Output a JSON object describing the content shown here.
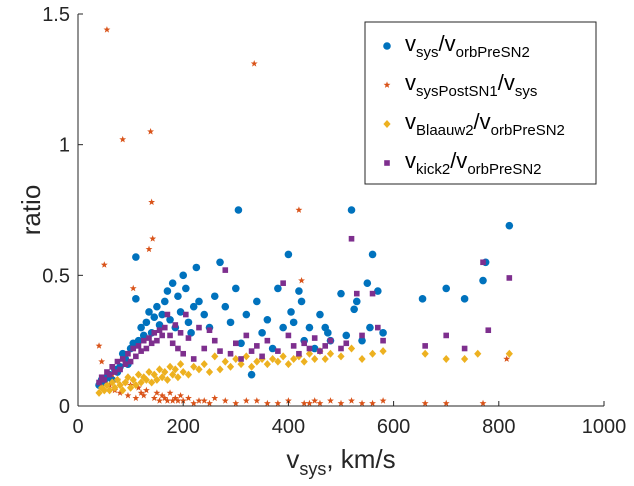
{
  "chart_data": {
    "type": "scatter",
    "xlabel_main": "v",
    "xlabel_sub": "sys",
    "xlabel_rest": ", km/s",
    "ylabel": "ratio",
    "xlim": [
      0,
      1000
    ],
    "ylim": [
      0,
      1.5
    ],
    "x_ticks": [
      0,
      200,
      400,
      600,
      800,
      1000
    ],
    "y_ticks": [
      0,
      0.5,
      1,
      1.5
    ],
    "x_tick_labels": [
      "0",
      "200",
      "400",
      "600",
      "800",
      "1000"
    ],
    "y_tick_labels": [
      "0",
      "0.5",
      "1",
      "1.5"
    ],
    "legend_position": "top-right",
    "grid": false,
    "series": [
      {
        "name": "vsys/vorbPreSN2",
        "legend_parts": [
          [
            "v",
            ""
          ],
          [
            "sys",
            "sub"
          ],
          [
            "/v",
            ""
          ],
          [
            "orbPreSN2",
            "sub"
          ]
        ],
        "marker": "circle",
        "color": "#0072BD",
        "points": [
          [
            40,
            0.08
          ],
          [
            45,
            0.1
          ],
          [
            50,
            0.09
          ],
          [
            55,
            0.11
          ],
          [
            60,
            0.12
          ],
          [
            65,
            0.1
          ],
          [
            70,
            0.14
          ],
          [
            75,
            0.13
          ],
          [
            80,
            0.15
          ],
          [
            85,
            0.2
          ],
          [
            90,
            0.18
          ],
          [
            95,
            0.16
          ],
          [
            100,
            0.22
          ],
          [
            105,
            0.24
          ],
          [
            110,
            0.41
          ],
          [
            110,
            0.57
          ],
          [
            115,
            0.25
          ],
          [
            120,
            0.3
          ],
          [
            125,
            0.27
          ],
          [
            130,
            0.32
          ],
          [
            135,
            0.36
          ],
          [
            140,
            0.28
          ],
          [
            145,
            0.34
          ],
          [
            150,
            0.38
          ],
          [
            155,
            0.31
          ],
          [
            160,
            0.35
          ],
          [
            165,
            0.4
          ],
          [
            170,
            0.44
          ],
          [
            175,
            0.33
          ],
          [
            180,
            0.47
          ],
          [
            185,
            0.3
          ],
          [
            190,
            0.42
          ],
          [
            195,
            0.36
          ],
          [
            200,
            0.5
          ],
          [
            205,
            0.45
          ],
          [
            210,
            0.32
          ],
          [
            215,
            0.28
          ],
          [
            220,
            0.38
          ],
          [
            225,
            0.53
          ],
          [
            230,
            0.4
          ],
          [
            240,
            0.35
          ],
          [
            250,
            0.3
          ],
          [
            260,
            0.42
          ],
          [
            270,
            0.55
          ],
          [
            280,
            0.38
          ],
          [
            290,
            0.32
          ],
          [
            300,
            0.45
          ],
          [
            305,
            0.75
          ],
          [
            310,
            0.24
          ],
          [
            320,
            0.35
          ],
          [
            330,
            0.12
          ],
          [
            340,
            0.4
          ],
          [
            350,
            0.28
          ],
          [
            360,
            0.33
          ],
          [
            370,
            0.22
          ],
          [
            380,
            0.45
          ],
          [
            390,
            0.3
          ],
          [
            400,
            0.58
          ],
          [
            405,
            0.36
          ],
          [
            410,
            0.32
          ],
          [
            420,
            0.44
          ],
          [
            425,
            0.4
          ],
          [
            430,
            0.25
          ],
          [
            440,
            0.3
          ],
          [
            450,
            0.22
          ],
          [
            460,
            0.35
          ],
          [
            470,
            0.3
          ],
          [
            475,
            0.28
          ],
          [
            480,
            0.25
          ],
          [
            500,
            0.43
          ],
          [
            510,
            0.27
          ],
          [
            520,
            0.75
          ],
          [
            525,
            0.37
          ],
          [
            530,
            0.4
          ],
          [
            540,
            0.25
          ],
          [
            550,
            0.47
          ],
          [
            555,
            0.3
          ],
          [
            560,
            0.58
          ],
          [
            570,
            0.44
          ],
          [
            580,
            0.28
          ],
          [
            655,
            0.41
          ],
          [
            700,
            0.45
          ],
          [
            735,
            0.41
          ],
          [
            770,
            0.48
          ],
          [
            775,
            0.55
          ],
          [
            820,
            0.69
          ]
        ]
      },
      {
        "name": "vsysPostSN1/vsys",
        "legend_parts": [
          [
            "v",
            ""
          ],
          [
            "sysPostSN1",
            "sub"
          ],
          [
            "/v",
            ""
          ],
          [
            "sys",
            "sub"
          ]
        ],
        "marker": "star",
        "color": "#D95319",
        "points": [
          [
            40,
            0.23
          ],
          [
            45,
            0.17
          ],
          [
            50,
            0.54
          ],
          [
            55,
            1.44
          ],
          [
            60,
            0.08
          ],
          [
            65,
            0.12
          ],
          [
            70,
            0.06
          ],
          [
            75,
            0.1
          ],
          [
            80,
            0.05
          ],
          [
            85,
            1.02
          ],
          [
            90,
            0.09
          ],
          [
            95,
            0.04
          ],
          [
            100,
            0.08
          ],
          [
            105,
            0.45
          ],
          [
            110,
            0.03
          ],
          [
            115,
            0.07
          ],
          [
            120,
            0.05
          ],
          [
            125,
            0.04
          ],
          [
            130,
            0.06
          ],
          [
            135,
            0.6
          ],
          [
            138,
            1.05
          ],
          [
            140,
            0.78
          ],
          [
            142,
            0.64
          ],
          [
            145,
            0.03
          ],
          [
            150,
            0.05
          ],
          [
            155,
            0.02
          ],
          [
            160,
            0.04
          ],
          [
            165,
            0.03
          ],
          [
            170,
            0.02
          ],
          [
            175,
            0.05
          ],
          [
            180,
            0.02
          ],
          [
            185,
            0.03
          ],
          [
            190,
            0.02
          ],
          [
            195,
            0.04
          ],
          [
            200,
            0.02
          ],
          [
            210,
            0.03
          ],
          [
            220,
            0.01
          ],
          [
            230,
            0.02
          ],
          [
            240,
            0.02
          ],
          [
            250,
            0.01
          ],
          [
            260,
            0.03
          ],
          [
            280,
            0.02
          ],
          [
            300,
            0.01
          ],
          [
            320,
            0.02
          ],
          [
            335,
            1.31
          ],
          [
            340,
            0.02
          ],
          [
            360,
            0.01
          ],
          [
            380,
            0.01
          ],
          [
            400,
            0.02
          ],
          [
            420,
            0.75
          ],
          [
            425,
            0.48
          ],
          [
            430,
            0.01
          ],
          [
            440,
            0.01
          ],
          [
            450,
            0.02
          ],
          [
            460,
            0.01
          ],
          [
            480,
            0.02
          ],
          [
            500,
            0.01
          ],
          [
            520,
            0.02
          ],
          [
            540,
            0.01
          ],
          [
            560,
            0.01
          ],
          [
            580,
            0.02
          ],
          [
            660,
            0.01
          ],
          [
            700,
            0.01
          ],
          [
            770,
            0.01
          ],
          [
            815,
            0.18
          ]
        ]
      },
      {
        "name": "vBlaauw2/vorbPreSN2",
        "legend_parts": [
          [
            "v",
            ""
          ],
          [
            "Blaauw2",
            "sub"
          ],
          [
            "/v",
            ""
          ],
          [
            "orbPreSN2",
            "sub"
          ]
        ],
        "marker": "diamond",
        "color": "#EDB120",
        "points": [
          [
            40,
            0.05
          ],
          [
            45,
            0.07
          ],
          [
            50,
            0.06
          ],
          [
            55,
            0.08
          ],
          [
            60,
            0.06
          ],
          [
            65,
            0.09
          ],
          [
            70,
            0.07
          ],
          [
            75,
            0.1
          ],
          [
            80,
            0.08
          ],
          [
            85,
            0.06
          ],
          [
            90,
            0.09
          ],
          [
            95,
            0.11
          ],
          [
            100,
            0.07
          ],
          [
            105,
            0.1
          ],
          [
            110,
            0.08
          ],
          [
            115,
            0.12
          ],
          [
            120,
            0.09
          ],
          [
            125,
            0.11
          ],
          [
            130,
            0.1
          ],
          [
            135,
            0.13
          ],
          [
            140,
            0.09
          ],
          [
            145,
            0.12
          ],
          [
            150,
            0.1
          ],
          [
            155,
            0.14
          ],
          [
            160,
            0.11
          ],
          [
            165,
            0.13
          ],
          [
            170,
            0.1
          ],
          [
            175,
            0.15
          ],
          [
            180,
            0.12
          ],
          [
            185,
            0.14
          ],
          [
            190,
            0.11
          ],
          [
            195,
            0.16
          ],
          [
            200,
            0.13
          ],
          [
            210,
            0.12
          ],
          [
            220,
            0.15
          ],
          [
            230,
            0.14
          ],
          [
            240,
            0.16
          ],
          [
            250,
            0.13
          ],
          [
            260,
            0.19
          ],
          [
            270,
            0.14
          ],
          [
            280,
            0.17
          ],
          [
            290,
            0.15
          ],
          [
            300,
            0.18
          ],
          [
            310,
            0.16
          ],
          [
            320,
            0.19
          ],
          [
            330,
            0.15
          ],
          [
            340,
            0.17
          ],
          [
            350,
            0.18
          ],
          [
            360,
            0.16
          ],
          [
            370,
            0.18
          ],
          [
            380,
            0.17
          ],
          [
            390,
            0.19
          ],
          [
            400,
            0.16
          ],
          [
            410,
            0.18
          ],
          [
            420,
            0.19
          ],
          [
            430,
            0.17
          ],
          [
            440,
            0.2
          ],
          [
            450,
            0.18
          ],
          [
            460,
            0.21
          ],
          [
            470,
            0.18
          ],
          [
            480,
            0.2
          ],
          [
            500,
            0.19
          ],
          [
            520,
            0.22
          ],
          [
            540,
            0.18
          ],
          [
            560,
            0.2
          ],
          [
            580,
            0.21
          ],
          [
            660,
            0.2
          ],
          [
            700,
            0.18
          ],
          [
            735,
            0.18
          ],
          [
            760,
            0.2
          ],
          [
            820,
            0.2
          ]
        ]
      },
      {
        "name": "vkick2/vorbPreSN2",
        "legend_parts": [
          [
            "v",
            ""
          ],
          [
            "kick2",
            "sub"
          ],
          [
            "/v",
            ""
          ],
          [
            "orbPreSN2",
            "sub"
          ]
        ],
        "marker": "square",
        "color": "#7E2F8E",
        "points": [
          [
            40,
            0.09
          ],
          [
            45,
            0.11
          ],
          [
            50,
            0.1
          ],
          [
            55,
            0.13
          ],
          [
            60,
            0.12
          ],
          [
            65,
            0.15
          ],
          [
            70,
            0.13
          ],
          [
            75,
            0.17
          ],
          [
            80,
            0.14
          ],
          [
            85,
            0.18
          ],
          [
            90,
            0.16
          ],
          [
            95,
            0.2
          ],
          [
            100,
            0.17
          ],
          [
            105,
            0.22
          ],
          [
            110,
            0.19
          ],
          [
            115,
            0.23
          ],
          [
            120,
            0.21
          ],
          [
            125,
            0.25
          ],
          [
            130,
            0.22
          ],
          [
            135,
            0.26
          ],
          [
            140,
            0.24
          ],
          [
            145,
            0.28
          ],
          [
            150,
            0.25
          ],
          [
            155,
            0.29
          ],
          [
            160,
            0.27
          ],
          [
            165,
            0.3
          ],
          [
            170,
            0.35
          ],
          [
            175,
            0.27
          ],
          [
            180,
            0.24
          ],
          [
            185,
            0.31
          ],
          [
            190,
            0.22
          ],
          [
            195,
            0.28
          ],
          [
            200,
            0.2
          ],
          [
            205,
            0.35
          ],
          [
            210,
            0.26
          ],
          [
            220,
            0.18
          ],
          [
            230,
            0.3
          ],
          [
            240,
            0.22
          ],
          [
            250,
            0.29
          ],
          [
            260,
            0.25
          ],
          [
            270,
            0.21
          ],
          [
            280,
            0.52
          ],
          [
            290,
            0.2
          ],
          [
            300,
            0.24
          ],
          [
            310,
            0.18
          ],
          [
            320,
            0.27
          ],
          [
            330,
            0.21
          ],
          [
            340,
            0.23
          ],
          [
            350,
            0.19
          ],
          [
            360,
            0.25
          ],
          [
            380,
            0.21
          ],
          [
            390,
            0.47
          ],
          [
            400,
            0.27
          ],
          [
            410,
            0.23
          ],
          [
            420,
            0.2
          ],
          [
            430,
            0.24
          ],
          [
            440,
            0.22
          ],
          [
            450,
            0.26
          ],
          [
            460,
            0.21
          ],
          [
            470,
            0.23
          ],
          [
            480,
            0.25
          ],
          [
            500,
            0.22
          ],
          [
            510,
            0.24
          ],
          [
            520,
            0.64
          ],
          [
            530,
            0.43
          ],
          [
            540,
            0.27
          ],
          [
            560,
            0.43
          ],
          [
            570,
            0.3
          ],
          [
            580,
            0.25
          ],
          [
            660,
            0.23
          ],
          [
            700,
            0.27
          ],
          [
            735,
            0.22
          ],
          [
            770,
            0.55
          ],
          [
            780,
            0.29
          ],
          [
            820,
            0.49
          ]
        ]
      }
    ]
  }
}
